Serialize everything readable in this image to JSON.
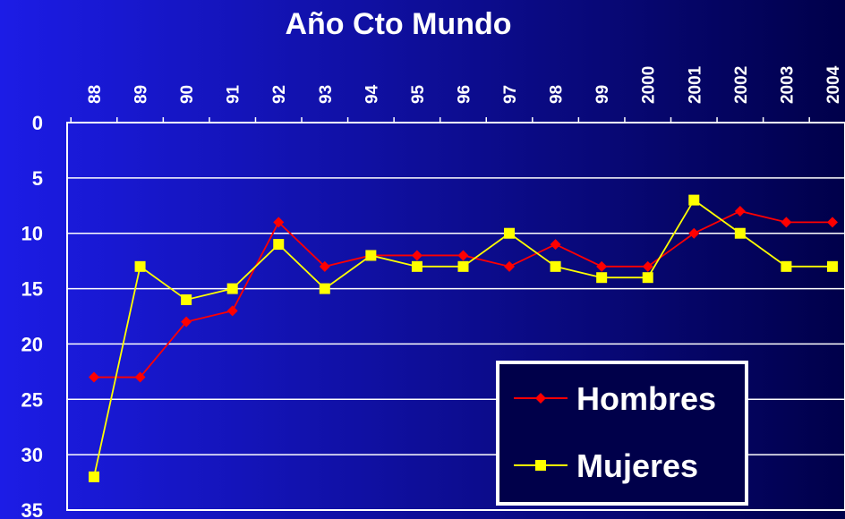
{
  "chart_data": {
    "type": "line",
    "title": "Año Cto Mundo",
    "categories": [
      "88",
      "89",
      "90",
      "91",
      "92",
      "93",
      "94",
      "95",
      "96",
      "97",
      "98",
      "99",
      "2000",
      "2001",
      "2002",
      "2003",
      "2004"
    ],
    "series": [
      {
        "name": "Hombres",
        "color": "#ff0000",
        "marker": "diamond",
        "values": [
          23,
          23,
          18,
          17,
          9,
          13,
          12,
          12,
          12,
          13,
          11,
          13,
          13,
          10,
          8,
          9,
          9
        ]
      },
      {
        "name": "Mujeres",
        "color": "#ffff00",
        "marker": "square",
        "values": [
          32,
          13,
          16,
          15,
          11,
          15,
          12,
          13,
          13,
          10,
          13,
          14,
          14,
          7,
          10,
          13,
          13
        ]
      }
    ],
    "ylim": [
      0,
      35
    ],
    "yticks": [
      0,
      5,
      10,
      15,
      20,
      25,
      30,
      35
    ],
    "y_inverted": true,
    "grid": true,
    "legend": "lower right"
  }
}
